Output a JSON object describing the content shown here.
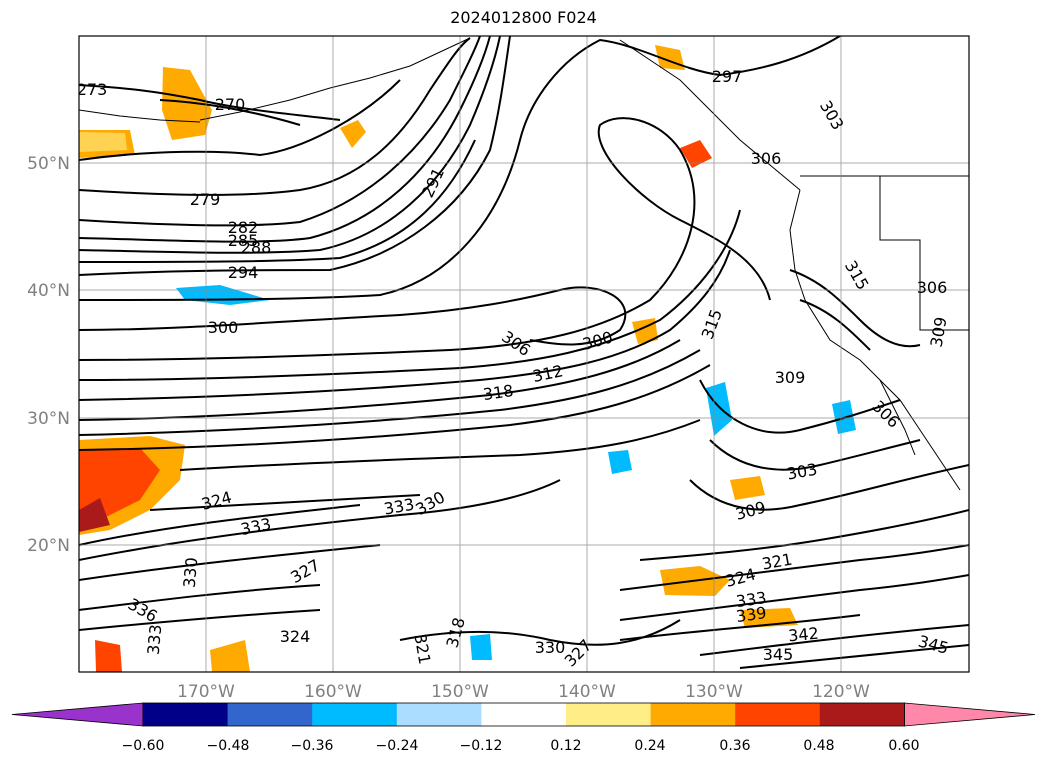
{
  "title": "2024012800 F024",
  "map": {
    "lat_labels": [
      "50°N",
      "40°N",
      "30°N",
      "20°N"
    ],
    "lon_labels": [
      "170°W",
      "160°W",
      "150°W",
      "140°W",
      "130°W",
      "120°W"
    ],
    "contour_labels": [
      "273",
      "270",
      "279",
      "282",
      "285",
      "288",
      "294",
      "300",
      "291",
      "297",
      "303",
      "306",
      "306",
      "300",
      "312",
      "318",
      "315",
      "309",
      "306",
      "303",
      "309",
      "324",
      "333",
      "330",
      "333",
      "327",
      "330",
      "336",
      "333",
      "324",
      "321",
      "318",
      "330",
      "327",
      "324",
      "321",
      "333",
      "339",
      "342",
      "345",
      "345",
      "315",
      "306",
      "309"
    ]
  },
  "colorbar": {
    "tick_labels": [
      "−0.60",
      "−0.48",
      "−0.36",
      "−0.24",
      "−0.12",
      "0.12",
      "0.24",
      "0.36",
      "0.48",
      "0.60"
    ],
    "colors": [
      "#9933cc",
      "#000088",
      "#3366cc",
      "#00bbff",
      "#aaddff",
      "#ffffff",
      "#ffee88",
      "#ffaa00",
      "#ff4400",
      "#aa1a1a",
      "#ff88aa"
    ]
  }
}
